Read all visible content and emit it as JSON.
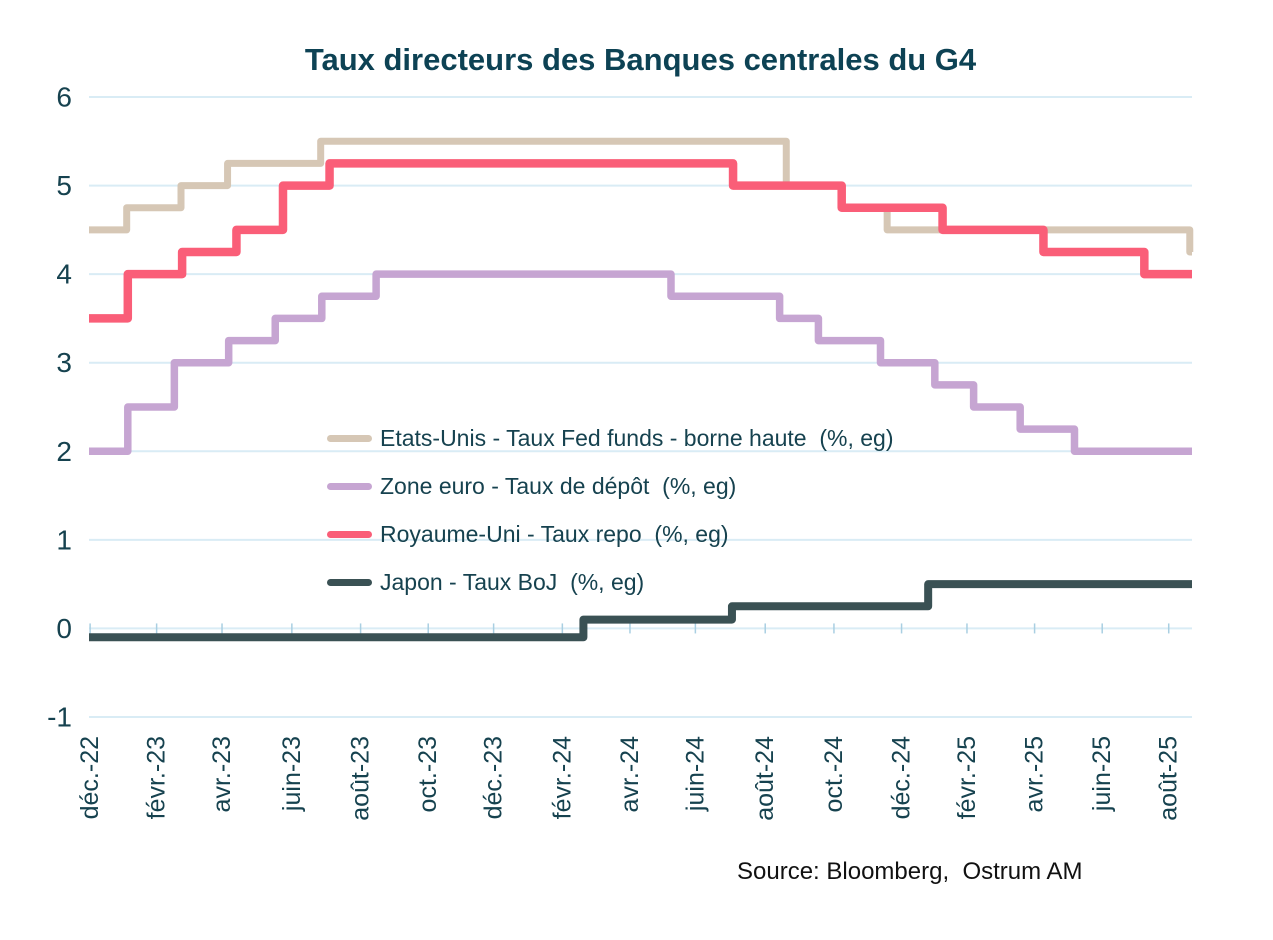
{
  "title": "Taux directeurs des Banques centrales du G4",
  "source": "Source: Bloomberg,  Ostrum AM",
  "colors": {
    "background": "#ffffff",
    "title_text": "#0d4254",
    "axis_text": "#16424f",
    "gridline": "#d9ecf5",
    "tick_mark": "#a9cfe2",
    "source_text": "#111111",
    "us_line": "#d6c7b5",
    "eurozone_line": "#c6a5d2",
    "uk_line": "#fa5e78",
    "japan_line": "#3a5154"
  },
  "chart_data": {
    "type": "line",
    "step": true,
    "title": "Taux directeurs des Banques centrales du G4",
    "xlabel": "",
    "ylabel": "",
    "ylim": [
      -1,
      6
    ],
    "grid": "horizontal",
    "legend_position": "inside-middle-left",
    "y_ticks": [
      6,
      5,
      4,
      3,
      2,
      1,
      0,
      -1
    ],
    "x_axis": {
      "start_date": "2022-12-29",
      "end_date": "2025-09-19",
      "ticks": [
        {
          "label": "déc.-22",
          "date": "2022-12-30"
        },
        {
          "label": "févr.-23",
          "date": "2023-02-28"
        },
        {
          "label": "avr.-23",
          "date": "2023-04-28"
        },
        {
          "label": "juin-23",
          "date": "2023-06-30"
        },
        {
          "label": "août-23",
          "date": "2023-08-31"
        },
        {
          "label": "oct.-23",
          "date": "2023-10-31"
        },
        {
          "label": "déc.-23",
          "date": "2023-12-29"
        },
        {
          "label": "févr.-24",
          "date": "2024-02-29"
        },
        {
          "label": "avr.-24",
          "date": "2024-04-30"
        },
        {
          "label": "juin-24",
          "date": "2024-06-28"
        },
        {
          "label": "août-24",
          "date": "2024-08-30"
        },
        {
          "label": "oct.-24",
          "date": "2024-10-31"
        },
        {
          "label": "déc.-24",
          "date": "2024-12-31"
        },
        {
          "label": "févr.-25",
          "date": "2025-02-28"
        },
        {
          "label": "avr.-25",
          "date": "2025-04-30"
        },
        {
          "label": "juin-25",
          "date": "2025-06-30"
        },
        {
          "label": "août-25",
          "date": "2025-08-29"
        }
      ]
    },
    "series": [
      {
        "name": "Etats-Unis - Taux Fed funds - borne haute  (%, eg)",
        "color": "#d6c7b5",
        "points": [
          [
            "2022-12-29",
            4.5
          ],
          [
            "2023-02-01",
            4.75
          ],
          [
            "2023-03-22",
            5.0
          ],
          [
            "2023-05-03",
            5.25
          ],
          [
            "2023-07-26",
            5.5
          ],
          [
            "2024-09-18",
            5.0
          ],
          [
            "2024-11-07",
            4.75
          ],
          [
            "2024-12-18",
            4.5
          ],
          [
            "2025-09-17",
            4.25
          ]
        ]
      },
      {
        "name": "Zone euro - Taux de dépôt  (%, eg)",
        "color": "#c6a5d2",
        "points": [
          [
            "2022-12-29",
            2.0
          ],
          [
            "2023-02-02",
            2.5
          ],
          [
            "2023-03-16",
            3.0
          ],
          [
            "2023-05-04",
            3.25
          ],
          [
            "2023-06-15",
            3.5
          ],
          [
            "2023-07-27",
            3.75
          ],
          [
            "2023-09-14",
            4.0
          ],
          [
            "2024-06-06",
            3.75
          ],
          [
            "2024-09-12",
            3.5
          ],
          [
            "2024-10-17",
            3.25
          ],
          [
            "2024-12-12",
            3.0
          ],
          [
            "2025-01-30",
            2.75
          ],
          [
            "2025-03-06",
            2.5
          ],
          [
            "2025-04-17",
            2.25
          ],
          [
            "2025-06-05",
            2.0
          ]
        ]
      },
      {
        "name": "Royaume-Uni - Taux repo  (%, eg)",
        "color": "#fa5e78",
        "points": [
          [
            "2022-12-29",
            3.5
          ],
          [
            "2023-02-02",
            4.0
          ],
          [
            "2023-03-23",
            4.25
          ],
          [
            "2023-05-11",
            4.5
          ],
          [
            "2023-06-22",
            5.0
          ],
          [
            "2023-08-03",
            5.25
          ],
          [
            "2024-08-01",
            5.0
          ],
          [
            "2024-11-07",
            4.75
          ],
          [
            "2025-02-06",
            4.5
          ],
          [
            "2025-05-08",
            4.25
          ],
          [
            "2025-08-07",
            4.0
          ]
        ]
      },
      {
        "name": "Japon - Taux BoJ  (%, eg)",
        "color": "#3a5154",
        "points": [
          [
            "2022-12-29",
            -0.1
          ],
          [
            "2024-03-19",
            0.1
          ],
          [
            "2024-07-31",
            0.25
          ],
          [
            "2025-01-24",
            0.5
          ]
        ]
      }
    ]
  }
}
